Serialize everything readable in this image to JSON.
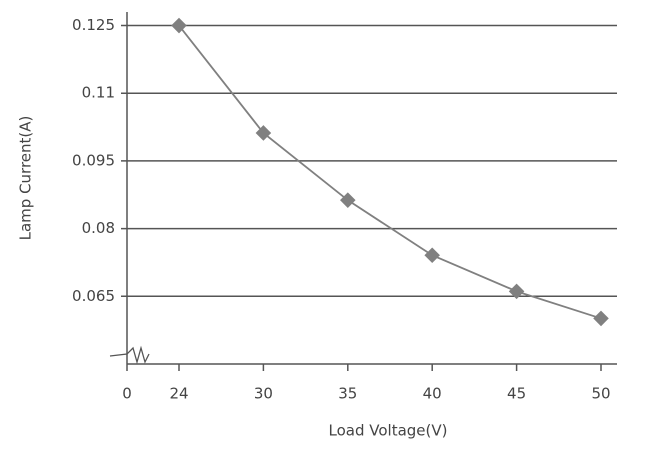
{
  "chart_data": {
    "type": "line",
    "x_label": "Load Voltage(V)",
    "y_label": "Lamp Current(A)",
    "categories": [
      "0",
      "24",
      "30",
      "35",
      "40",
      "45",
      "50"
    ],
    "values": [
      null,
      0.125,
      0.1012,
      0.0863,
      0.0741,
      0.0661,
      0.0601
    ],
    "color": "#808080",
    "ylim": [
      0.05,
      0.128
    ],
    "yticks": [
      0.065,
      0.08,
      0.095,
      0.11,
      0.125
    ],
    "grid": true
  }
}
